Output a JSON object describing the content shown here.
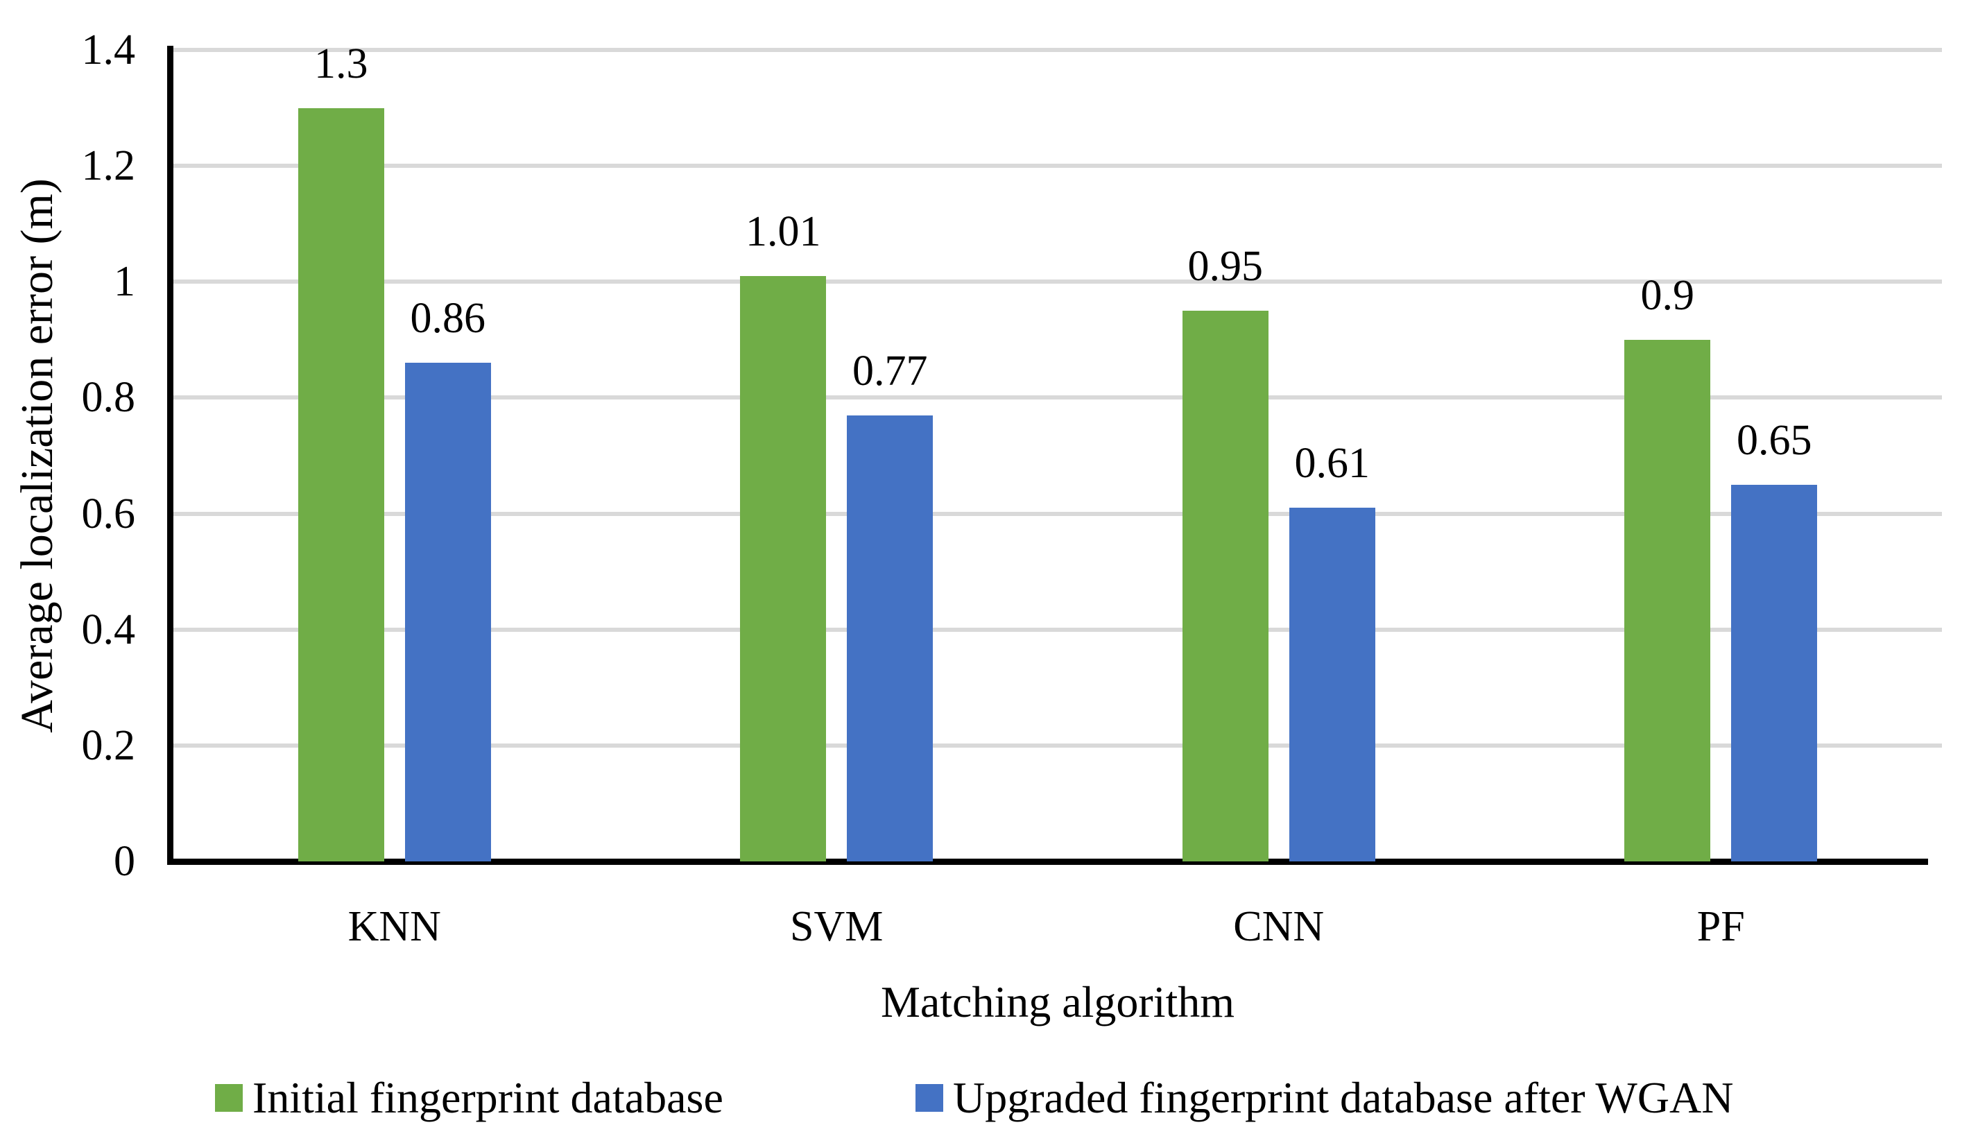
{
  "figure": {
    "background": "#ffffff"
  },
  "chart_data": {
    "type": "bar",
    "title": "",
    "xlabel": "Matching algorithm",
    "ylabel": "Average localization error (m)",
    "categories": [
      "KNN",
      "SVM",
      "CNN",
      "PF"
    ],
    "series": [
      {
        "name": "Initial fingerprint database",
        "color": "#70AD47",
        "values": [
          1.3,
          1.01,
          0.95,
          0.9
        ],
        "labels": [
          "1.3",
          "1.01",
          "0.95",
          "0.9"
        ]
      },
      {
        "name": "Upgraded fingerprint database after WGAN",
        "color": "#4472C4",
        "values": [
          0.86,
          0.77,
          0.61,
          0.65
        ],
        "labels": [
          "0.86",
          "0.77",
          "0.61",
          "0.65"
        ]
      }
    ],
    "ylim": [
      0,
      1.4
    ],
    "yticks": {
      "values": [
        0,
        0.2,
        0.4,
        0.6,
        0.8,
        1,
        1.2,
        1.4
      ],
      "labels": [
        "0",
        "0.2",
        "0.4",
        "0.6",
        "0.8",
        "1",
        "1.2",
        "1.4"
      ]
    },
    "grid": true,
    "gridline_color": "#D9D9D9",
    "axis_color": "#000000",
    "text_color": "#000000",
    "legend_position": "bottom"
  }
}
